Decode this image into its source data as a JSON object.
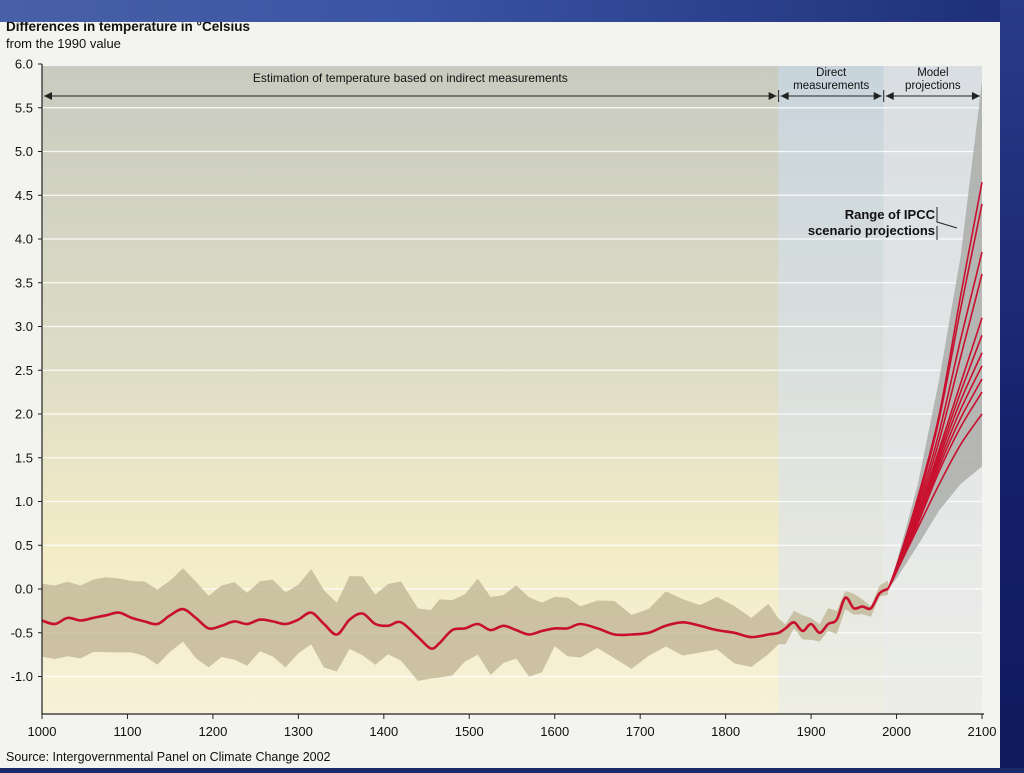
{
  "chart_data": {
    "type": "line",
    "title": "Differences in temperature in °Celsius",
    "subtitle": "from the 1990 value",
    "source": "Source: Intergovernmental Panel on Climate Change 2002",
    "xlim": [
      1000,
      2100
    ],
    "ylim": [
      -1.3,
      6.0
    ],
    "x_ticks": [
      "1000",
      "1100",
      "1200",
      "1300",
      "1400",
      "1500",
      "1600",
      "1700",
      "1800",
      "1900",
      "2000",
      "2100"
    ],
    "y_ticks": [
      "6.0",
      "5.5",
      "5.0",
      "4.5",
      "4.0",
      "3.5",
      "3.0",
      "2.5",
      "2.0",
      "1.5",
      "1.0",
      "0.5",
      "0.0",
      "-0.5",
      "-1.0"
    ],
    "regions": [
      {
        "label": [
          "Estimation of temperature based on indirect measurements"
        ],
        "from": 1000,
        "to": 1862
      },
      {
        "label": [
          "Direct",
          "measurements"
        ],
        "from": 1862,
        "to": 1985
      },
      {
        "label": [
          "Model",
          "projections"
        ],
        "from": 1985,
        "to": 2100
      }
    ],
    "annotation": [
      "Range of IPCC",
      "scenario projections"
    ],
    "series": [
      {
        "color": "#c8102e",
        "x": [
          1000,
          1015,
          1030,
          1045,
          1060,
          1075,
          1090,
          1105,
          1120,
          1135,
          1150,
          1165,
          1180,
          1195,
          1210,
          1225,
          1240,
          1255,
          1270,
          1285,
          1300,
          1315,
          1330,
          1345,
          1360,
          1375,
          1390,
          1405,
          1420,
          1440,
          1455,
          1465,
          1480,
          1495,
          1510,
          1525,
          1540,
          1555,
          1570,
          1585,
          1600,
          1615,
          1630,
          1650,
          1670,
          1690,
          1710,
          1730,
          1750,
          1770,
          1790,
          1810,
          1830,
          1850,
          1862,
          1870,
          1880,
          1890,
          1900,
          1910,
          1920,
          1930,
          1940,
          1950,
          1960,
          1970,
          1980,
          1990
        ],
        "y": [
          -0.36,
          -0.4,
          -0.33,
          -0.36,
          -0.33,
          -0.3,
          -0.27,
          -0.33,
          -0.37,
          -0.4,
          -0.3,
          -0.23,
          -0.33,
          -0.45,
          -0.42,
          -0.37,
          -0.4,
          -0.35,
          -0.37,
          -0.4,
          -0.35,
          -0.27,
          -0.4,
          -0.52,
          -0.35,
          -0.28,
          -0.4,
          -0.42,
          -0.38,
          -0.55,
          -0.68,
          -0.62,
          -0.47,
          -0.45,
          -0.4,
          -0.47,
          -0.42,
          -0.47,
          -0.52,
          -0.48,
          -0.45,
          -0.45,
          -0.4,
          -0.45,
          -0.52,
          -0.52,
          -0.5,
          -0.42,
          -0.38,
          -0.42,
          -0.47,
          -0.5,
          -0.55,
          -0.52,
          -0.5,
          -0.45,
          -0.38,
          -0.48,
          -0.4,
          -0.5,
          -0.4,
          -0.35,
          -0.1,
          -0.22,
          -0.2,
          -0.22,
          -0.05,
          0.0
        ]
      }
    ],
    "projections": {
      "x": [
        1990,
        2000,
        2025,
        2050,
        2075,
        2100
      ],
      "series_y": [
        [
          0.0,
          0.2,
          0.7,
          1.2,
          1.65,
          2.0
        ],
        [
          0.0,
          0.2,
          0.75,
          1.35,
          1.85,
          2.25
        ],
        [
          0.0,
          0.2,
          0.75,
          1.4,
          1.95,
          2.4
        ],
        [
          0.0,
          0.2,
          0.8,
          1.45,
          2.05,
          2.55
        ],
        [
          0.0,
          0.22,
          0.8,
          1.5,
          2.15,
          2.7
        ],
        [
          0.0,
          0.22,
          0.85,
          1.55,
          2.25,
          2.9
        ],
        [
          0.0,
          0.22,
          0.85,
          1.6,
          2.35,
          3.1
        ],
        [
          0.0,
          0.24,
          0.9,
          1.7,
          2.65,
          3.6
        ],
        [
          0.0,
          0.24,
          0.95,
          1.8,
          2.85,
          3.85
        ],
        [
          0.0,
          0.26,
          1.0,
          1.95,
          3.2,
          4.4
        ],
        [
          0.0,
          0.26,
          1.05,
          2.0,
          3.35,
          4.65
        ]
      ],
      "envelope_upper": [
        0.0,
        0.3,
        1.2,
        2.4,
        3.8,
        5.8
      ],
      "envelope_lower": [
        0.0,
        0.12,
        0.5,
        0.9,
        1.2,
        1.4
      ]
    }
  }
}
